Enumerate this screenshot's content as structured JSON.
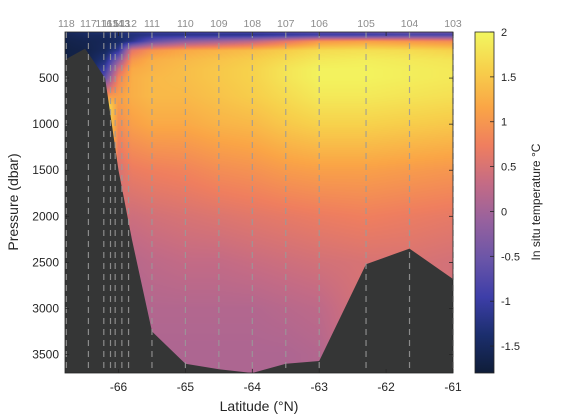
{
  "chart_data": {
    "type": "heatmap",
    "title": "",
    "xlabel": "Latitude (°N)",
    "ylabel": "Pressure (dbar)",
    "colorbar_label": "In situ temperature °C",
    "xlim": [
      -66.8,
      -61.0
    ],
    "ylim": [
      0,
      3700
    ],
    "y_reversed": true,
    "x_ticks": [
      -66,
      -65,
      -64,
      -63,
      -62,
      -61
    ],
    "y_ticks": [
      500,
      1000,
      1500,
      2000,
      2500,
      3000,
      3500
    ],
    "colorbar": {
      "range": [
        -1.8,
        2.0
      ],
      "ticks": [
        "-1.5",
        "-1",
        "-0.5",
        "0",
        "0.5",
        "1",
        "1.5",
        "2"
      ],
      "tick_values": [
        -1.5,
        -1,
        -0.5,
        0,
        0.5,
        1,
        1.5,
        2
      ],
      "colormap": [
        "#0f1d38",
        "#1b2e6d",
        "#3d3ea8",
        "#6a55a8",
        "#96619e",
        "#c46b85",
        "#ef7e5f",
        "#faa546",
        "#f7d04b",
        "#f2f760"
      ]
    },
    "stations": [
      {
        "name": "118",
        "lat": -66.78
      },
      {
        "name": "117",
        "lat": -66.45
      },
      {
        "name": "116",
        "lat": -66.22
      },
      {
        "name": "115",
        "lat": -66.12
      },
      {
        "name": "114",
        "lat": -66.05
      },
      {
        "name": "113",
        "lat": -65.95
      },
      {
        "name": "112",
        "lat": -65.85
      },
      {
        "name": "111",
        "lat": -65.5
      },
      {
        "name": "110",
        "lat": -65.0
      },
      {
        "name": "109",
        "lat": -64.5
      },
      {
        "name": "108",
        "lat": -64.0
      },
      {
        "name": "107",
        "lat": -63.5
      },
      {
        "name": "106",
        "lat": -63.0
      },
      {
        "name": "105",
        "lat": -62.3
      },
      {
        "name": "104",
        "lat": -61.65
      },
      {
        "name": "103",
        "lat": -61.0
      }
    ],
    "bathymetry": [
      [
        -66.8,
        300
      ],
      [
        -66.5,
        180
      ],
      [
        -66.2,
        500
      ],
      [
        -66.0,
        1500
      ],
      [
        -65.8,
        2250
      ],
      [
        -65.5,
        3250
      ],
      [
        -65.0,
        3600
      ],
      [
        -64.5,
        3660
      ],
      [
        -64.0,
        3700
      ],
      [
        -63.5,
        3600
      ],
      [
        -63.0,
        3570
      ],
      [
        -62.3,
        2520
      ],
      [
        -61.65,
        2350
      ],
      [
        -61.0,
        2680
      ]
    ],
    "temperature_profiles": [
      {
        "lat": -66.8,
        "p": [
          0,
          30,
          100,
          200,
          300,
          400
        ],
        "t": [
          -1.5,
          -1.6,
          -1.65,
          -1.7,
          -1.7,
          -1.7
        ]
      },
      {
        "lat": -66.5,
        "p": [
          0,
          30,
          100,
          200,
          300,
          400,
          600
        ],
        "t": [
          -1.4,
          -1.5,
          -1.6,
          -1.65,
          -1.65,
          -1.65,
          -1.6
        ]
      },
      {
        "lat": -66.2,
        "p": [
          0,
          30,
          100,
          200,
          300,
          400,
          500,
          600,
          800
        ],
        "t": [
          -1.3,
          -1.5,
          -1.55,
          -1.5,
          -1.3,
          -1.0,
          -0.6,
          0.2,
          1.9
        ]
      },
      {
        "lat": -66.0,
        "p": [
          0,
          30,
          100,
          200,
          300,
          400,
          500,
          700,
          1000,
          1500
        ],
        "t": [
          -1.2,
          -1.4,
          -1.45,
          -1.1,
          -0.3,
          0.4,
          0.8,
          1.1,
          0.9,
          0.5
        ]
      },
      {
        "lat": -65.8,
        "p": [
          0,
          30,
          100,
          200,
          300,
          400,
          500,
          700,
          1000,
          1500,
          2000,
          2500,
          3000
        ],
        "t": [
          -1.1,
          -1.3,
          -1.2,
          0.6,
          1.0,
          1.2,
          1.25,
          1.25,
          1.1,
          0.7,
          0.4,
          0.2,
          0.1
        ]
      },
      {
        "lat": -65.5,
        "p": [
          0,
          30,
          100,
          200,
          300,
          400,
          500,
          700,
          1000,
          1500,
          2000,
          2500,
          3000,
          3500
        ],
        "t": [
          -1.0,
          -1.2,
          -0.6,
          1.0,
          1.25,
          1.3,
          1.35,
          1.35,
          1.2,
          0.75,
          0.45,
          0.25,
          0.15,
          0.1
        ]
      },
      {
        "lat": -65.0,
        "p": [
          0,
          30,
          100,
          200,
          300,
          400,
          500,
          700,
          1000,
          1500,
          2000,
          2500,
          3000,
          3500
        ],
        "t": [
          -0.9,
          -1.2,
          -0.2,
          1.2,
          1.35,
          1.4,
          1.4,
          1.35,
          1.2,
          0.8,
          0.5,
          0.3,
          0.15,
          0.1
        ]
      },
      {
        "lat": -64.5,
        "p": [
          0,
          30,
          100,
          200,
          300,
          400,
          500,
          700,
          1000,
          1500,
          2000,
          2500,
          3000,
          3500
        ],
        "t": [
          -0.8,
          -1.2,
          0.0,
          1.3,
          1.45,
          1.5,
          1.5,
          1.45,
          1.3,
          0.9,
          0.55,
          0.3,
          0.15,
          0.1
        ]
      },
      {
        "lat": -64.0,
        "p": [
          0,
          30,
          100,
          200,
          300,
          400,
          500,
          700,
          1000,
          1500,
          2000,
          2500,
          3000,
          3500
        ],
        "t": [
          -0.8,
          -1.2,
          0.2,
          1.4,
          1.55,
          1.6,
          1.6,
          1.55,
          1.35,
          0.95,
          0.6,
          0.35,
          0.15,
          0.1
        ]
      },
      {
        "lat": -63.5,
        "p": [
          0,
          30,
          100,
          200,
          300,
          400,
          500,
          700,
          1000,
          1500,
          2000,
          2500,
          3000,
          3500
        ],
        "t": [
          -0.7,
          -1.1,
          0.6,
          1.55,
          1.7,
          1.8,
          1.8,
          1.7,
          1.5,
          1.05,
          0.65,
          0.4,
          0.2,
          0.1
        ]
      },
      {
        "lat": -63.0,
        "p": [
          0,
          30,
          100,
          200,
          300,
          400,
          500,
          700,
          1000,
          1500,
          2000,
          2500,
          3000,
          3500
        ],
        "t": [
          -0.6,
          -1.0,
          1.0,
          1.7,
          1.85,
          1.95,
          1.95,
          1.85,
          1.6,
          1.1,
          0.7,
          0.45,
          0.25,
          0.15
        ]
      },
      {
        "lat": -62.3,
        "p": [
          0,
          30,
          100,
          200,
          300,
          400,
          500,
          700,
          1000,
          1500,
          2000,
          2500
        ],
        "t": [
          -0.5,
          -1.0,
          1.1,
          1.75,
          1.9,
          1.95,
          1.95,
          1.85,
          1.6,
          1.1,
          0.75,
          0.5
        ]
      },
      {
        "lat": -61.65,
        "p": [
          0,
          30,
          100,
          200,
          300,
          400,
          500,
          700,
          1000,
          1500,
          2000,
          2500
        ],
        "t": [
          -0.4,
          -0.9,
          1.0,
          1.7,
          1.85,
          1.9,
          1.9,
          1.8,
          1.55,
          1.05,
          0.7,
          0.5
        ]
      },
      {
        "lat": -61.0,
        "p": [
          0,
          30,
          100,
          200,
          300,
          400,
          500,
          700,
          1000,
          1500,
          2000,
          2500
        ],
        "t": [
          -0.4,
          -0.9,
          0.9,
          1.6,
          1.8,
          1.85,
          1.85,
          1.75,
          1.5,
          1.0,
          0.65,
          0.45
        ]
      }
    ],
    "colors": {
      "bathymetry": "#353636",
      "station_line": "#9a9a9a",
      "axis": "#262626"
    }
  }
}
